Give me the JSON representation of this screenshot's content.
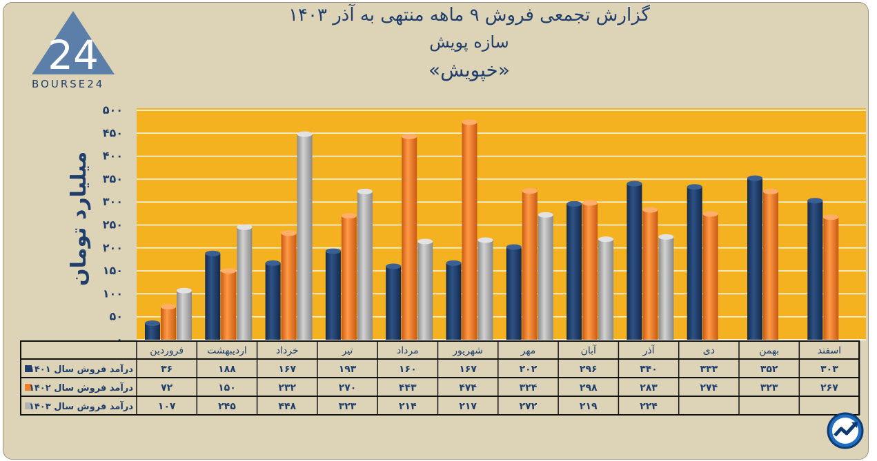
{
  "header": {
    "title": "گزارش تجمعی فروش ۹ ماهه منتهی به آذر ۱۴۰۳",
    "company": "سازه پویش",
    "symbol": "«خپویش»"
  },
  "logo": {
    "text": "24",
    "brand": "BOURSE24"
  },
  "colors": {
    "background": "#ddd3b7",
    "plot": "#f5b220",
    "s1401": "#1f3e6b",
    "s1402": "#f07f2a",
    "s1403": "#b3b3b3",
    "text": "#1f3e6b"
  },
  "badge_icon": "trend-chart-circle-icon",
  "chart_data": {
    "type": "bar",
    "title": "گزارش تجمعی فروش ۹ ماهه منتهی به آذر ۱۴۰۳",
    "ylabel": "میلیارد تومان",
    "ylim": [
      0,
      500
    ],
    "grid": true,
    "tick_labels": [
      "۰",
      "۵۰",
      "۱۰۰",
      "۱۵۰",
      "۲۰۰",
      "۲۵۰",
      "۳۰۰",
      "۳۵۰",
      "۴۰۰",
      "۴۵۰",
      "۵۰۰"
    ],
    "categories": [
      "فروردین",
      "اردیبهشت",
      "خرداد",
      "تیر",
      "مرداد",
      "شهریور",
      "مهر",
      "آبان",
      "آذر",
      "دی",
      "بهمن",
      "اسفند"
    ],
    "series": [
      {
        "name": "درآمد فروش سال ۱۴۰۱",
        "values": [
          36,
          188,
          167,
          193,
          160,
          167,
          202,
          296,
          340,
          333,
          352,
          303
        ]
      },
      {
        "name": "درآمد فروش سال ۱۴۰۲",
        "values": [
          72,
          150,
          232,
          270,
          443,
          474,
          324,
          298,
          283,
          274,
          323,
          267
        ]
      },
      {
        "name": "درآمد فروش سال ۱۴۰۳",
        "values": [
          107,
          245,
          448,
          323,
          214,
          217,
          272,
          219,
          224,
          null,
          null,
          null
        ]
      }
    ]
  }
}
